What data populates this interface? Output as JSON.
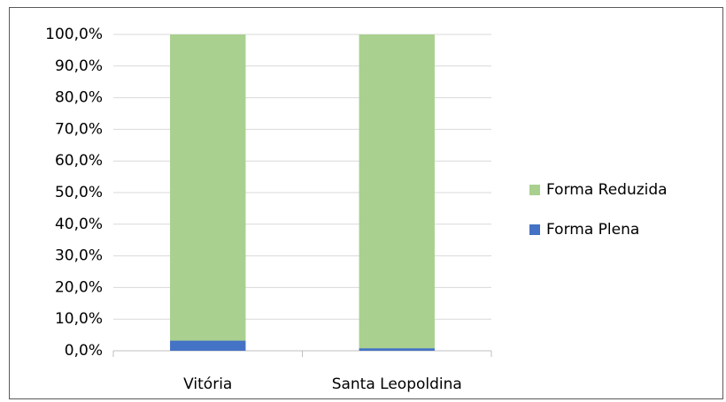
{
  "chart_data": {
    "type": "stacked_bar",
    "categories": [
      "Vitória",
      "Santa Leopoldina"
    ],
    "series": [
      {
        "name": "Forma Plena",
        "color": "#4472c4",
        "values": [
          3.2,
          0.8
        ]
      },
      {
        "name": "Forma Reduzida",
        "color": "#a9d08e",
        "values": [
          96.8,
          99.2
        ]
      }
    ],
    "ylim": [
      0,
      100
    ],
    "yticks": [
      {
        "value": 0,
        "label": "0,0%"
      },
      {
        "value": 10,
        "label": "10,0%"
      },
      {
        "value": 20,
        "label": "20,0%"
      },
      {
        "value": 30,
        "label": "30,0%"
      },
      {
        "value": 40,
        "label": "40,0%"
      },
      {
        "value": 50,
        "label": "50,0%"
      },
      {
        "value": 60,
        "label": "60,0%"
      },
      {
        "value": 70,
        "label": "70,0%"
      },
      {
        "value": 80,
        "label": "80,0%"
      },
      {
        "value": 90,
        "label": "90,0%"
      },
      {
        "value": 100,
        "label": "100,0%"
      }
    ],
    "grid": true,
    "legend": "right"
  }
}
